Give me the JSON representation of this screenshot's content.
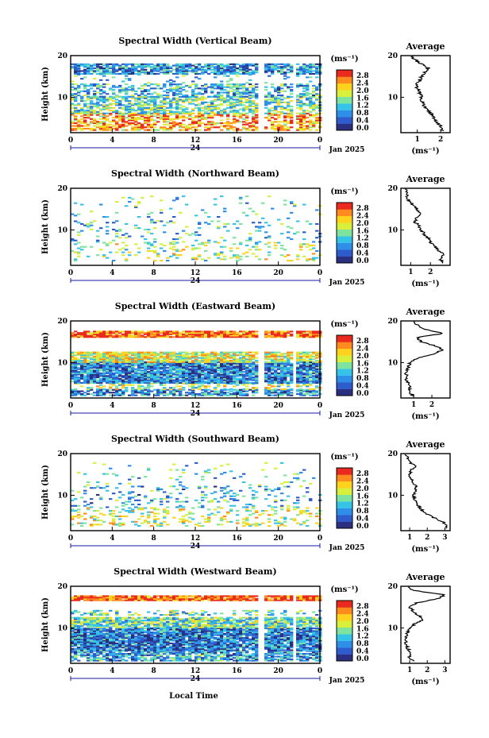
{
  "figure": {
    "xlabel": "Local Time",
    "ylabel": "Height (km)",
    "date_label": "Jan 2025",
    "day_label": "24",
    "colorbar_unit": "(ms⁻¹)",
    "colorbar_ticks": [
      "0.0",
      "0.4",
      "0.8",
      "1.2",
      "1.6",
      "2.0",
      "2.4",
      "2.8"
    ],
    "colorbar_colors": [
      "#2b2f80",
      "#2e5ccc",
      "#2f8fe8",
      "#35c4e8",
      "#7fe3a0",
      "#d8ef3c",
      "#ffd21e",
      "#ff8a1e",
      "#ea2a1e"
    ],
    "profile_title": "Average",
    "profile_xlabel": "(ms⁻¹)"
  },
  "chart_data": [
    {
      "type": "heatmap",
      "title": "Spectral Width (Vertical Beam)",
      "xlabel": "Local Time",
      "ylabel": "Height (km)",
      "xlim": [
        0,
        24
      ],
      "ylim": [
        1.5,
        20
      ],
      "x_ticks": [
        "0",
        "4",
        "8",
        "12",
        "16",
        "20",
        "0"
      ],
      "y_ticks": [
        "10",
        "20"
      ],
      "colorbar": {
        "label": "(ms⁻¹)",
        "range": [
          0.0,
          2.8
        ]
      },
      "profile": {
        "title": "Average",
        "xlabel": "(ms⁻¹)",
        "xlim": [
          0.3,
          2.4
        ],
        "x_ticks": [
          "1",
          "2"
        ],
        "height": [
          2,
          3,
          4,
          5,
          6,
          7,
          8,
          9,
          10,
          11,
          12,
          13,
          14,
          15,
          16,
          17,
          18,
          19,
          20
        ],
        "width": [
          2.1,
          2.0,
          1.8,
          1.7,
          1.6,
          1.4,
          1.3,
          1.2,
          1.2,
          1.1,
          1.0,
          1.0,
          1.1,
          1.2,
          1.3,
          1.5,
          1.2,
          0.9,
          0.8
        ]
      }
    },
    {
      "type": "heatmap",
      "title": "Spectral Width (Northward Beam)",
      "xlabel": "Local Time",
      "ylabel": "Height (km)",
      "xlim": [
        0,
        24
      ],
      "ylim": [
        1.5,
        20
      ],
      "x_ticks": [
        "0",
        "4",
        "8",
        "12",
        "16",
        "20",
        "0"
      ],
      "y_ticks": [
        "10",
        "20"
      ],
      "colorbar": {
        "label": "(ms⁻¹)",
        "range": [
          0.0,
          2.8
        ]
      },
      "profile": {
        "title": "Average",
        "xlabel": "(ms⁻¹)",
        "xlim": [
          0.5,
          3.0
        ],
        "x_ticks": [
          "1",
          "2"
        ],
        "height": [
          2,
          3,
          4,
          5,
          6,
          7,
          8,
          9,
          10,
          11,
          12,
          13,
          14,
          15,
          16,
          17,
          18,
          19,
          20
        ],
        "width": [
          2.6,
          2.5,
          2.7,
          2.4,
          2.2,
          2.0,
          1.9,
          1.7,
          1.5,
          1.4,
          1.2,
          1.3,
          1.5,
          1.3,
          1.1,
          0.9,
          0.8,
          0.8,
          0.7
        ]
      }
    },
    {
      "type": "heatmap",
      "title": "Spectral Width (Eastward Beam)",
      "xlabel": "Local Time",
      "ylabel": "Height (km)",
      "xlim": [
        0,
        24
      ],
      "ylim": [
        1.5,
        20
      ],
      "x_ticks": [
        "0",
        "4",
        "8",
        "12",
        "16",
        "20",
        "0"
      ],
      "y_ticks": [
        "10",
        "20"
      ],
      "colorbar": {
        "label": "(ms⁻¹)",
        "range": [
          0.0,
          2.8
        ]
      },
      "profile": {
        "title": "Average",
        "xlabel": "(ms⁻¹)",
        "xlim": [
          0.3,
          3.0
        ],
        "x_ticks": [
          "1",
          "2"
        ],
        "height": [
          2,
          3,
          4,
          5,
          6,
          7,
          8,
          9,
          10,
          11,
          12,
          13,
          14,
          15,
          16,
          17,
          18,
          19,
          20
        ],
        "width": [
          1.0,
          0.7,
          0.8,
          0.7,
          0.6,
          0.6,
          0.6,
          0.7,
          0.8,
          1.2,
          2.0,
          2.6,
          2.2,
          1.4,
          1.2,
          2.6,
          1.6,
          1.2,
          1.0
        ]
      }
    },
    {
      "type": "heatmap",
      "title": "Spectral Width (Southward Beam)",
      "xlabel": "Local Time",
      "ylabel": "Height (km)",
      "xlim": [
        0,
        24
      ],
      "ylim": [
        1.5,
        20
      ],
      "x_ticks": [
        "0",
        "4",
        "8",
        "12",
        "16",
        "20",
        "0"
      ],
      "y_ticks": [
        "10",
        "20"
      ],
      "colorbar": {
        "label": "(ms⁻¹)",
        "range": [
          0.0,
          2.8
        ]
      },
      "profile": {
        "title": "Average",
        "xlabel": "(ms⁻¹)",
        "xlim": [
          0.5,
          3.3
        ],
        "x_ticks": [
          "1",
          "2",
          "3"
        ],
        "height": [
          2,
          3,
          4,
          5,
          6,
          7,
          8,
          9,
          10,
          11,
          12,
          13,
          14,
          15,
          16,
          17,
          18,
          19,
          20
        ],
        "width": [
          3.0,
          3.1,
          2.7,
          2.2,
          1.8,
          1.6,
          1.4,
          1.3,
          1.2,
          1.3,
          1.4,
          1.2,
          1.1,
          1.0,
          1.1,
          1.3,
          1.0,
          0.9,
          0.8
        ]
      }
    },
    {
      "type": "heatmap",
      "title": "Spectral Width (Westward Beam)",
      "xlabel": "Local Time",
      "ylabel": "Height (km)",
      "xlim": [
        0,
        24
      ],
      "ylim": [
        1.5,
        20
      ],
      "x_ticks": [
        "0",
        "4",
        "8",
        "12",
        "16",
        "20",
        "0"
      ],
      "y_ticks": [
        "10",
        "20"
      ],
      "colorbar": {
        "label": "(ms⁻¹)",
        "range": [
          0.0,
          2.8
        ]
      },
      "profile": {
        "title": "Average",
        "xlabel": "(ms⁻¹)",
        "xlim": [
          0.5,
          3.3
        ],
        "x_ticks": [
          "1",
          "2",
          "3"
        ],
        "height": [
          2,
          3,
          4,
          5,
          6,
          7,
          8,
          9,
          10,
          11,
          12,
          13,
          14,
          15,
          16,
          17,
          18,
          19,
          20
        ],
        "width": [
          1.2,
          1.0,
          1.1,
          0.9,
          0.8,
          0.8,
          0.8,
          0.9,
          1.0,
          1.3,
          1.8,
          1.5,
          1.2,
          1.0,
          1.4,
          2.6,
          3.0,
          1.2,
          0.9
        ]
      }
    }
  ]
}
